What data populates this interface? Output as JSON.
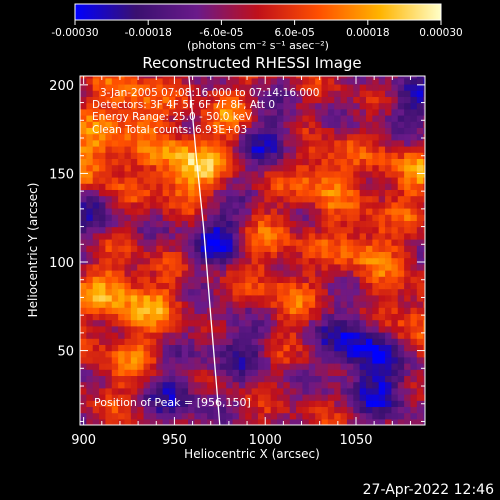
{
  "colorbar": {
    "tick_labels": [
      "-0.00030",
      "-0.00018",
      "-6.0e-05",
      "6.0e-05",
      "0.00018",
      "0.00030"
    ],
    "range": [
      -0.0003,
      0.0003
    ],
    "unit_label": "(photons cm⁻² s⁻¹ asec⁻²)",
    "colors": [
      "#0000ff",
      "#3a1070",
      "#6a1a8a",
      "#c0101a",
      "#ff5000",
      "#ffb400",
      "#ffffc8"
    ]
  },
  "chart_data": {
    "type": "heatmap",
    "title": "Reconstructed RHESSI Image",
    "xlabel": "Heliocentric X (arcsec)",
    "ylabel": "Heliocentric Y (arcsec)",
    "xlim": [
      898,
      1088
    ],
    "ylim": [
      8,
      205
    ],
    "xticks": [
      900,
      950,
      1000,
      1050
    ],
    "yticks": [
      50,
      100,
      150,
      200
    ],
    "annotations": [
      "3-Jan-2005 07:08:16.000 to 07:14:16.000",
      "Detectors: 3F 4F 5F 6F 7F 8F, Att 0",
      "Energy Range: 25.0 - 50.0 keV",
      "Clean     Total counts: 6.93E+03"
    ],
    "peak_label": "Position of Peak = [956,150]",
    "peak": [
      956,
      150
    ],
    "limb_curve": [
      [
        958,
        205
      ],
      [
        962,
        160
      ],
      [
        966,
        120
      ],
      [
        970,
        70
      ],
      [
        975,
        8
      ]
    ],
    "hotspots": [
      {
        "x": 956,
        "y": 152,
        "intensity": 1.0
      },
      {
        "x": 905,
        "y": 158,
        "intensity": 0.75
      },
      {
        "x": 925,
        "y": 188,
        "intensity": 0.65
      },
      {
        "x": 982,
        "y": 180,
        "intensity": 0.55
      },
      {
        "x": 1030,
        "y": 150,
        "intensity": 0.65
      },
      {
        "x": 1078,
        "y": 150,
        "intensity": 0.55
      },
      {
        "x": 1055,
        "y": 110,
        "intensity": 0.6
      },
      {
        "x": 1000,
        "y": 110,
        "intensity": 0.5
      },
      {
        "x": 915,
        "y": 85,
        "intensity": 0.55
      },
      {
        "x": 935,
        "y": 75,
        "intensity": 0.5
      },
      {
        "x": 1078,
        "y": 70,
        "intensity": 0.5
      },
      {
        "x": 1008,
        "y": 75,
        "intensity": 0.4
      },
      {
        "x": 922,
        "y": 40,
        "intensity": 0.4
      }
    ],
    "coldspots": [
      {
        "x": 1050,
        "y": 55,
        "intensity": -0.9
      },
      {
        "x": 975,
        "y": 115,
        "intensity": -0.8
      },
      {
        "x": 1000,
        "y": 170,
        "intensity": -0.75
      },
      {
        "x": 1065,
        "y": 30,
        "intensity": -0.7
      },
      {
        "x": 950,
        "y": 25,
        "intensity": -0.6
      },
      {
        "x": 985,
        "y": 55,
        "intensity": -0.55
      },
      {
        "x": 1082,
        "y": 190,
        "intensity": -0.55
      },
      {
        "x": 900,
        "y": 125,
        "intensity": -0.5
      }
    ]
  },
  "footer": {
    "timestamp": "27-Apr-2022 12:46"
  }
}
